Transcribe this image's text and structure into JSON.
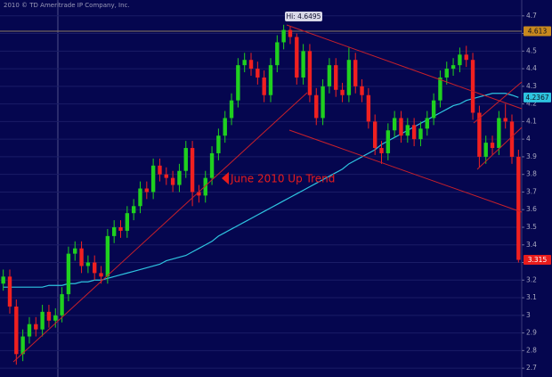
{
  "chart_data": {
    "type": "candlestick",
    "title": "2010 © TD Ameritrade IP Company, Inc.",
    "annotations": {
      "high": "Hi: 4.6495",
      "trend": "June 2010 Up Trend"
    },
    "ylim": [
      2.65,
      4.79
    ],
    "yticks": [
      2.7,
      2.8,
      2.9,
      3,
      3.1,
      3.2,
      3.3,
      3.4,
      3.5,
      3.6,
      3.7,
      3.8,
      3.9,
      4,
      4.1,
      4.2,
      4.3,
      4.4,
      4.5,
      4.6,
      4.7
    ],
    "grid": true,
    "up_color": "#1fd01f",
    "down_color": "#f02020",
    "candles": [
      [
        3.18,
        3.26,
        3.14,
        3.22
      ],
      [
        3.22,
        3.26,
        3.01,
        3.05
      ],
      [
        3.05,
        3.09,
        2.72,
        2.78
      ],
      [
        2.78,
        2.92,
        2.74,
        2.88
      ],
      [
        2.88,
        2.99,
        2.84,
        2.95
      ],
      [
        2.95,
        2.99,
        2.88,
        2.92
      ],
      [
        2.92,
        3.06,
        2.88,
        3.02
      ],
      [
        3.02,
        3.06,
        2.93,
        2.97
      ],
      [
        2.97,
        3.04,
        2.93,
        3.0
      ],
      [
        3.0,
        3.16,
        2.96,
        3.12
      ],
      [
        3.12,
        3.39,
        3.08,
        3.35
      ],
      [
        3.35,
        3.42,
        3.31,
        3.38
      ],
      [
        3.38,
        3.42,
        3.24,
        3.28
      ],
      [
        3.28,
        3.34,
        3.24,
        3.3
      ],
      [
        3.3,
        3.34,
        3.2,
        3.24
      ],
      [
        3.24,
        3.28,
        3.18,
        3.22
      ],
      [
        3.22,
        3.49,
        3.18,
        3.45
      ],
      [
        3.45,
        3.54,
        3.41,
        3.5
      ],
      [
        3.5,
        3.54,
        3.44,
        3.48
      ],
      [
        3.48,
        3.62,
        3.44,
        3.58
      ],
      [
        3.58,
        3.66,
        3.54,
        3.62
      ],
      [
        3.62,
        3.76,
        3.58,
        3.72
      ],
      [
        3.72,
        3.76,
        3.66,
        3.7
      ],
      [
        3.7,
        3.89,
        3.66,
        3.85
      ],
      [
        3.85,
        3.89,
        3.76,
        3.8
      ],
      [
        3.8,
        3.84,
        3.74,
        3.78
      ],
      [
        3.78,
        3.82,
        3.7,
        3.74
      ],
      [
        3.74,
        3.86,
        3.7,
        3.82
      ],
      [
        3.82,
        3.99,
        3.78,
        3.95
      ],
      [
        3.95,
        3.99,
        3.62,
        3.7
      ],
      [
        3.7,
        3.74,
        3.64,
        3.68
      ],
      [
        3.68,
        3.82,
        3.64,
        3.78
      ],
      [
        3.78,
        3.96,
        3.74,
        3.92
      ],
      [
        3.92,
        4.06,
        3.88,
        4.02
      ],
      [
        4.02,
        4.16,
        3.98,
        4.12
      ],
      [
        4.12,
        4.26,
        4.08,
        4.22
      ],
      [
        4.22,
        4.46,
        4.18,
        4.42
      ],
      [
        4.42,
        4.49,
        4.38,
        4.45
      ],
      [
        4.45,
        4.49,
        4.36,
        4.4
      ],
      [
        4.4,
        4.44,
        4.31,
        4.35
      ],
      [
        4.35,
        4.39,
        4.21,
        4.25
      ],
      [
        4.25,
        4.46,
        4.21,
        4.42
      ],
      [
        4.42,
        4.59,
        4.38,
        4.55
      ],
      [
        4.55,
        4.6495,
        4.51,
        4.62
      ],
      [
        4.62,
        4.64,
        4.54,
        4.58
      ],
      [
        4.58,
        4.6,
        4.31,
        4.35
      ],
      [
        4.35,
        4.54,
        4.31,
        4.5
      ],
      [
        4.5,
        4.54,
        4.21,
        4.25
      ],
      [
        4.25,
        4.29,
        4.08,
        4.12
      ],
      [
        4.12,
        4.34,
        4.08,
        4.3
      ],
      [
        4.3,
        4.46,
        4.26,
        4.42
      ],
      [
        4.42,
        4.46,
        4.24,
        4.28
      ],
      [
        4.28,
        4.32,
        4.21,
        4.25
      ],
      [
        4.25,
        4.52,
        4.21,
        4.45
      ],
      [
        4.45,
        4.49,
        4.26,
        4.3
      ],
      [
        4.3,
        4.34,
        4.21,
        4.25
      ],
      [
        4.25,
        4.29,
        4.06,
        4.1
      ],
      [
        4.1,
        4.14,
        3.91,
        3.95
      ],
      [
        3.95,
        3.99,
        3.86,
        3.92
      ],
      [
        3.92,
        4.09,
        3.88,
        4.05
      ],
      [
        4.05,
        4.16,
        4.01,
        4.12
      ],
      [
        4.12,
        4.16,
        3.98,
        4.02
      ],
      [
        4.02,
        4.12,
        3.98,
        4.08
      ],
      [
        4.08,
        4.12,
        3.96,
        4.0
      ],
      [
        4.0,
        4.1,
        3.96,
        4.06
      ],
      [
        4.06,
        4.16,
        4.02,
        4.12
      ],
      [
        4.12,
        4.26,
        4.08,
        4.22
      ],
      [
        4.22,
        4.39,
        4.18,
        4.35
      ],
      [
        4.35,
        4.44,
        4.31,
        4.4
      ],
      [
        4.4,
        4.46,
        4.36,
        4.42
      ],
      [
        4.42,
        4.52,
        4.38,
        4.48
      ],
      [
        4.48,
        4.53,
        4.41,
        4.45
      ],
      [
        4.45,
        4.49,
        4.11,
        4.15
      ],
      [
        4.15,
        4.19,
        3.84,
        3.9
      ],
      [
        3.9,
        4.02,
        3.86,
        3.98
      ],
      [
        3.98,
        4.02,
        3.91,
        3.95
      ],
      [
        3.95,
        4.16,
        3.91,
        4.12
      ],
      [
        4.12,
        4.2,
        4.06,
        4.1
      ],
      [
        4.1,
        4.14,
        3.86,
        3.9
      ],
      [
        3.9,
        3.94,
        3.3,
        3.315
      ]
    ],
    "moving_average": {
      "color": "#2ec4e0",
      "values": [
        3.16,
        3.16,
        3.16,
        3.16,
        3.16,
        3.16,
        3.16,
        3.17,
        3.17,
        3.17,
        3.18,
        3.18,
        3.19,
        3.19,
        3.2,
        3.2,
        3.21,
        3.22,
        3.23,
        3.24,
        3.25,
        3.26,
        3.27,
        3.28,
        3.29,
        3.31,
        3.32,
        3.33,
        3.34,
        3.36,
        3.38,
        3.4,
        3.42,
        3.45,
        3.47,
        3.49,
        3.51,
        3.53,
        3.55,
        3.57,
        3.59,
        3.61,
        3.63,
        3.65,
        3.67,
        3.69,
        3.71,
        3.73,
        3.75,
        3.77,
        3.79,
        3.81,
        3.83,
        3.86,
        3.88,
        3.9,
        3.92,
        3.94,
        3.97,
        3.99,
        4.01,
        4.03,
        4.05,
        4.07,
        4.09,
        4.11,
        4.13,
        4.15,
        4.17,
        4.19,
        4.2,
        4.22,
        4.23,
        4.24,
        4.25,
        4.26,
        4.26,
        4.26,
        4.25,
        4.2367
      ]
    },
    "price_labels": [
      {
        "value": 4.613,
        "label": "4.613",
        "color": "#c8891e"
      },
      {
        "value": 4.2367,
        "label": "4.2367",
        "color": "#2ec4e0"
      },
      {
        "value": 3.315,
        "label": "3.315",
        "color": "#e81c1c"
      }
    ]
  }
}
